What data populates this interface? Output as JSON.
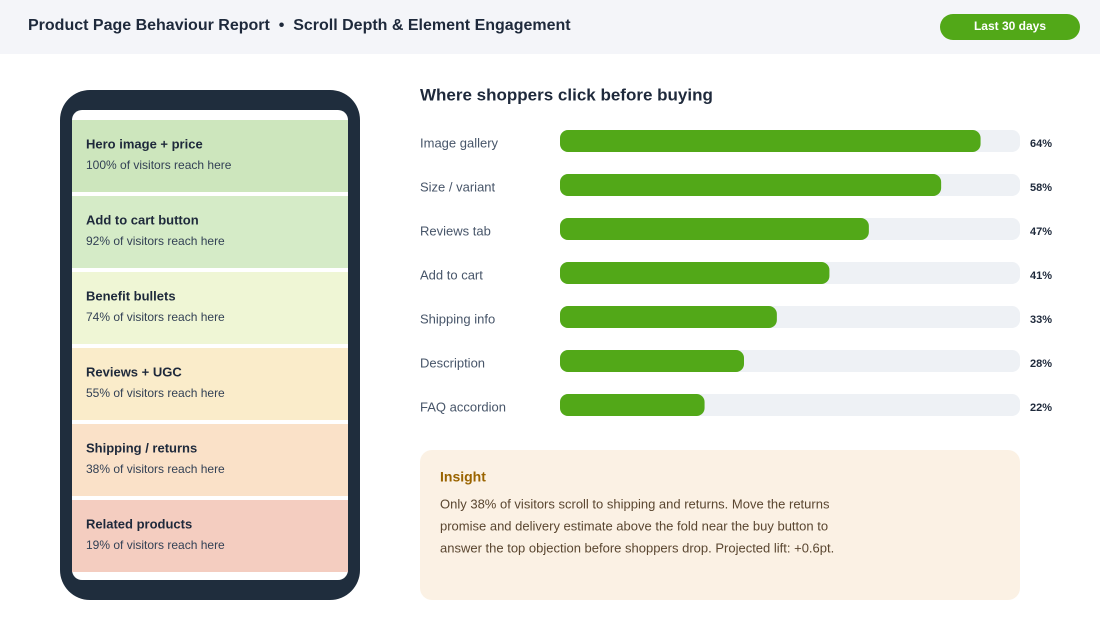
{
  "header": {
    "title": "Product Page Behaviour Report  •  Scroll Depth & Element Engagement",
    "badge": "Last 30 days"
  },
  "phone": {
    "sections": [
      {
        "title": "Hero image + price",
        "reach": "100% of visitors reach here",
        "color": "#cde6bd"
      },
      {
        "title": "Add to cart button",
        "reach": "92% of visitors reach here",
        "color": "#d5ebc7"
      },
      {
        "title": "Benefit bullets",
        "reach": "74% of visitors reach here",
        "color": "#eff6d5"
      },
      {
        "title": "Reviews + UGC",
        "reach": "55% of visitors reach here",
        "color": "#faecca"
      },
      {
        "title": "Shipping / returns",
        "reach": "38% of visitors reach here",
        "color": "#fae1c8"
      },
      {
        "title": "Related products",
        "reach": "19% of visitors reach here",
        "color": "#f4cdc0"
      }
    ]
  },
  "chart_data": {
    "type": "bar",
    "orientation": "horizontal",
    "title": "Where shoppers click before buying",
    "categories": [
      "Image gallery",
      "Size / variant",
      "Reviews tab",
      "Add to cart",
      "Shipping info",
      "Description",
      "FAQ accordion"
    ],
    "values": [
      64,
      58,
      47,
      41,
      33,
      28,
      22
    ],
    "value_labels": [
      "64%",
      "58%",
      "47%",
      "41%",
      "33%",
      "28%",
      "22%"
    ],
    "xlim": [
      0,
      70
    ],
    "color": "#52a818"
  },
  "insight": {
    "title": "Insight",
    "lines": [
      "Only 38% of visitors scroll to shipping and returns. Move the returns",
      "promise and delivery estimate above the fold near the buy button to",
      "answer the top objection before shoppers drop. Projected lift: +0.6pt."
    ]
  }
}
